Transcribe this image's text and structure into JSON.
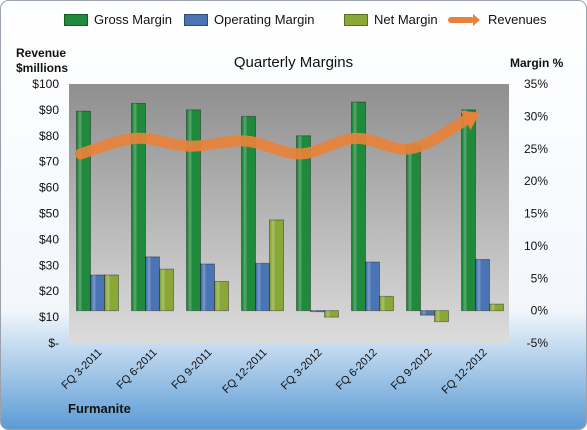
{
  "colors": {
    "gross": "#1f8a3c",
    "operating": "#4a74b4",
    "net": "#8aa838",
    "revenue": "#e8823a",
    "plot_top": "#8f8f8f",
    "plot_bottom": "#dcdcdc",
    "bg_top": "#ffffff",
    "bg_bottom": "#5b9bd5"
  },
  "legend": {
    "gross": "Gross Margin",
    "operating": "Operating Margin",
    "net": "Net Margin",
    "revenue": "Revenues"
  },
  "company": "Furmanite",
  "chart_data": {
    "type": "bar",
    "title": "Quarterly Margins",
    "ylabel": "Revenue\n$millions",
    "y2label": "Margin %",
    "ylim": [
      0,
      100
    ],
    "y2lim": [
      -5,
      35
    ],
    "ytick_labels": [
      "$-",
      "$10",
      "$20",
      "$30",
      "$40",
      "$50",
      "$60",
      "$70",
      "$80",
      "$90",
      "$100"
    ],
    "y2tick_labels": [
      "-5%",
      "0%",
      "5%",
      "10%",
      "15%",
      "20%",
      "25%",
      "30%",
      "35%"
    ],
    "categories": [
      "FQ 3-2011",
      "FQ 6-2011",
      "FQ 9-2011",
      "FQ 12-2011",
      "FQ 3-2012",
      "FQ 6-2012",
      "FQ 9-2012",
      "FQ 12-2012"
    ],
    "series": [
      {
        "name": "Gross Margin",
        "axis": "right",
        "values": [
          30.8,
          32.0,
          31.0,
          30.0,
          27.0,
          32.2,
          25.5,
          31.0
        ]
      },
      {
        "name": "Operating Margin",
        "axis": "right",
        "values": [
          5.5,
          8.3,
          7.2,
          7.3,
          0.0,
          7.5,
          -0.7,
          7.9
        ]
      },
      {
        "name": "Net Margin",
        "axis": "right",
        "values": [
          5.5,
          6.4,
          4.5,
          14.0,
          -1.0,
          2.2,
          -1.7,
          1.0
        ]
      },
      {
        "name": "Revenues",
        "axis": "left",
        "type": "line",
        "values": [
          73,
          79,
          76,
          78,
          73,
          79,
          75,
          86
        ]
      }
    ],
    "grid": false,
    "legend_position": "top"
  }
}
